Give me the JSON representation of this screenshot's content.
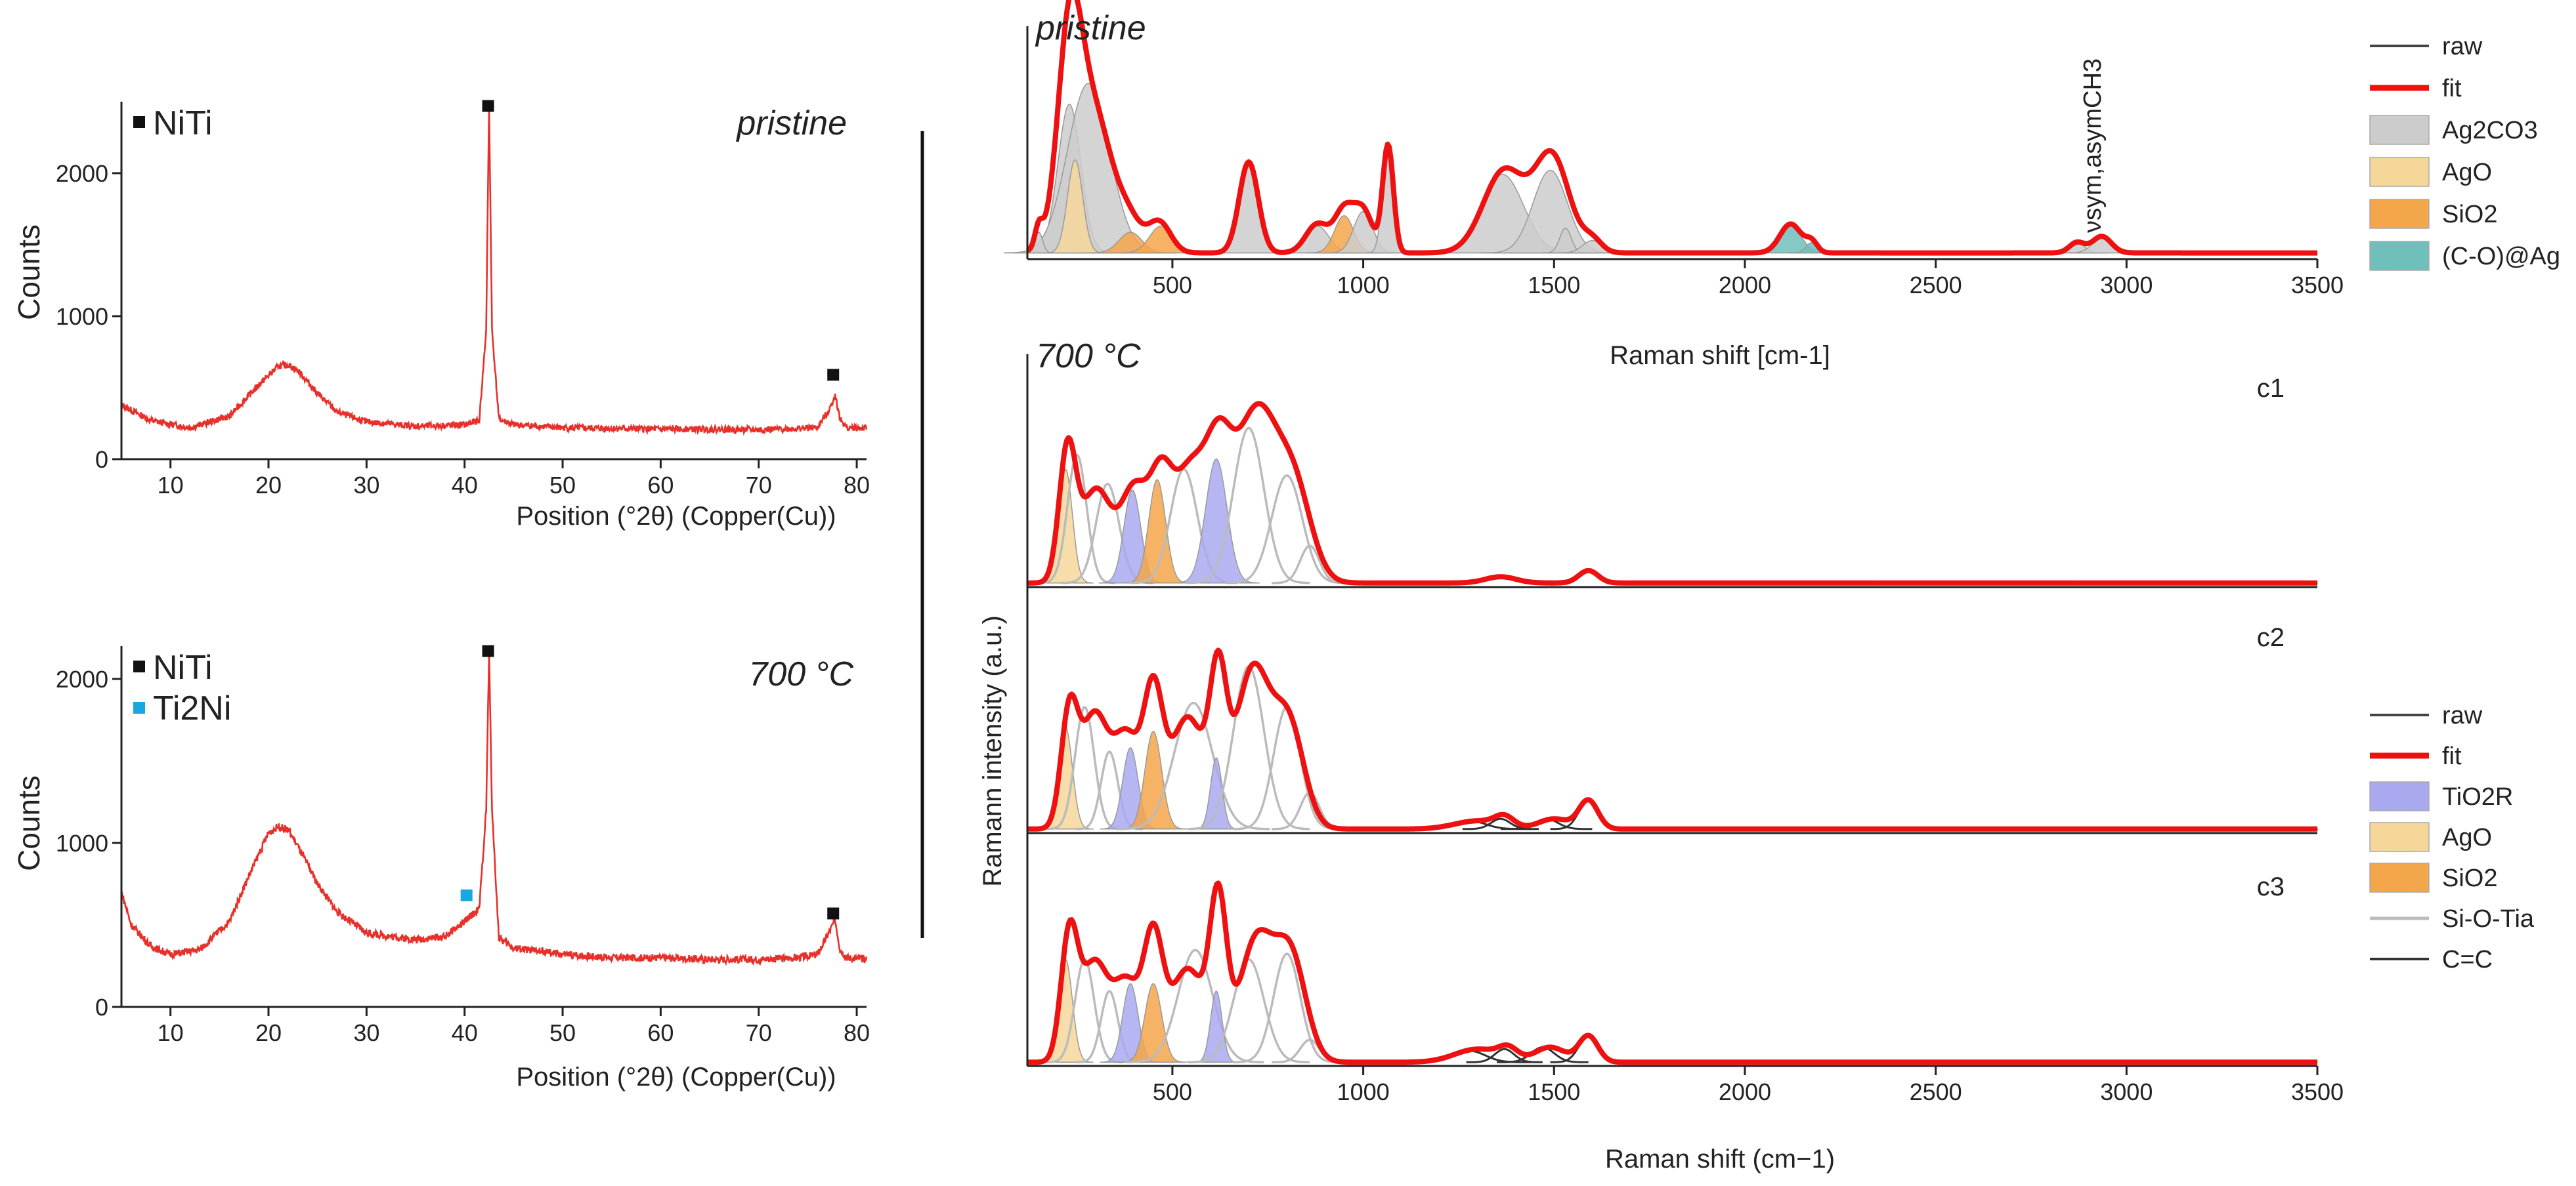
{
  "colors": {
    "raw": "#444444",
    "fit": "#ee1111",
    "ag2co3": "#cccccc",
    "ago": "#f5d79a",
    "sio2": "#f4a64a",
    "co_ag": "#6fc0bb",
    "tio2r": "#a9a9f0",
    "si_o_ti": "#bbbbbb",
    "cc": "#333333",
    "xrd_line": "#e8302a",
    "niti_marker": "#111111",
    "ti2ni_marker": "#1aa7e0"
  },
  "chart_data": [
    {
      "id": "xrd-pristine",
      "type": "line",
      "panel_label": "pristine",
      "xlabel": "Position (°2θ) (Copper(Cu))",
      "ylabel": "Counts",
      "xlim": [
        5,
        81
      ],
      "ylim": [
        0,
        2500
      ],
      "xticks": [
        10,
        20,
        30,
        40,
        50,
        60,
        70,
        80
      ],
      "xticklabels": [
        "10",
        "20",
        "30",
        "40",
        "50",
        "60",
        "70",
        "80"
      ],
      "yticks": [
        0,
        1000,
        2000
      ],
      "yticklabels": [
        "0",
        "1000",
        "2000"
      ],
      "series": [
        {
          "x": [
            5,
            8,
            12,
            16,
            19,
            21,
            22,
            23,
            25,
            27,
            30,
            35,
            40,
            41.5,
            42.2,
            42.5,
            42.8,
            43.5,
            45,
            50,
            55,
            60,
            65,
            70,
            74,
            76,
            77.3,
            77.8,
            78.3,
            79,
            81
          ],
          "y": [
            380,
            270,
            220,
            300,
            520,
            650,
            660,
            620,
            460,
            330,
            260,
            230,
            240,
            270,
            900,
            2480,
            900,
            280,
            240,
            220,
            215,
            210,
            210,
            205,
            215,
            220,
            360,
            450,
            280,
            220,
            215
          ]
        }
      ],
      "markers": [
        {
          "phase": "NiTi",
          "x": 42.4,
          "y": 2470
        },
        {
          "phase": "NiTi",
          "x": 77.6,
          "y": 590
        }
      ],
      "legend": [
        {
          "label": "NiTi"
        }
      ]
    },
    {
      "id": "xrd-700",
      "type": "line",
      "panel_label": "700 °C",
      "xlabel": "Position (°2θ) (Copper(Cu))",
      "ylabel": "Counts",
      "xlim": [
        5,
        81
      ],
      "ylim": [
        0,
        2200
      ],
      "xticks": [
        10,
        20,
        30,
        40,
        50,
        60,
        70,
        80
      ],
      "xticklabels": [
        "10",
        "20",
        "30",
        "40",
        "50",
        "60",
        "70",
        "80"
      ],
      "yticks": [
        0,
        1000,
        2000
      ],
      "yticklabels": [
        "0",
        "1000",
        "2000"
      ],
      "series": [
        {
          "x": [
            5,
            6,
            8,
            10,
            13,
            16,
            18,
            20,
            21,
            22,
            23,
            25,
            27,
            30,
            35,
            38,
            40,
            41.5,
            42.2,
            42.5,
            42.8,
            43.5,
            45,
            50,
            55,
            60,
            65,
            70,
            74,
            76,
            77.3,
            77.8,
            78.3,
            79,
            81
          ],
          "y": [
            700,
            500,
            370,
            320,
            350,
            520,
            800,
            1060,
            1100,
            1080,
            980,
            750,
            580,
            450,
            410,
            430,
            520,
            600,
            1200,
            2160,
            1200,
            420,
            360,
            320,
            300,
            300,
            290,
            290,
            300,
            320,
            470,
            530,
            350,
            300,
            290
          ]
        }
      ],
      "markers": [
        {
          "phase": "NiTi",
          "x": 42.4,
          "y": 2170
        },
        {
          "phase": "Ti2Ni",
          "x": 40.2,
          "y": 680
        },
        {
          "phase": "NiTi",
          "x": 77.6,
          "y": 570
        }
      ],
      "legend": [
        {
          "label": "NiTi"
        },
        {
          "label": "Ti2Ni"
        }
      ]
    },
    {
      "id": "raman-pristine",
      "type": "area",
      "panel_label": "pristine",
      "xlabel": "Raman shift [cm-1]",
      "xlim": [
        120,
        3500
      ],
      "ylim": [
        0,
        1.0
      ],
      "xticks": [
        500,
        1000,
        1500,
        2000,
        2500,
        3000,
        3500
      ],
      "xticklabels": [
        "500",
        "1000",
        "1500",
        "2000",
        "2500",
        "3000",
        "3500"
      ],
      "annotation": "νsym,asymCH3",
      "baseline": 0.03,
      "components": [
        {
          "type": "ag2co3",
          "c": 230,
          "w": 30,
          "h": 0.72
        },
        {
          "type": "ag2co3",
          "c": 280,
          "w": 55,
          "h": 0.82
        },
        {
          "type": "ago",
          "c": 245,
          "w": 20,
          "h": 0.45
        },
        {
          "type": "ag2co3",
          "c": 150,
          "w": 10,
          "h": 0.1
        },
        {
          "type": "sio2",
          "c": 390,
          "w": 30,
          "h": 0.1
        },
        {
          "type": "sio2",
          "c": 470,
          "w": 30,
          "h": 0.13
        },
        {
          "type": "ag2co3",
          "c": 700,
          "w": 25,
          "h": 0.43
        },
        {
          "type": "ag2co3",
          "c": 880,
          "w": 30,
          "h": 0.13
        },
        {
          "type": "sio2",
          "c": 950,
          "w": 25,
          "h": 0.18
        },
        {
          "type": "ag2co3",
          "c": 1000,
          "w": 25,
          "h": 0.2
        },
        {
          "type": "ag2co3",
          "c": 1065,
          "w": 14,
          "h": 0.52
        },
        {
          "type": "ag2co3",
          "c": 1365,
          "w": 55,
          "h": 0.38
        },
        {
          "type": "ag2co3",
          "c": 1490,
          "w": 45,
          "h": 0.4
        },
        {
          "type": "ag2co3",
          "c": 1530,
          "w": 15,
          "h": 0.12
        },
        {
          "type": "ag2co3",
          "c": 1600,
          "w": 25,
          "h": 0.06
        },
        {
          "type": "co_ag",
          "c": 2120,
          "w": 28,
          "h": 0.13
        },
        {
          "type": "co_ag",
          "c": 2175,
          "w": 15,
          "h": 0.05
        },
        {
          "type": "ag2co3",
          "c": 2870,
          "w": 20,
          "h": 0.05
        },
        {
          "type": "ag2co3",
          "c": 2935,
          "w": 25,
          "h": 0.07
        }
      ],
      "fit_peaks": [
        {
          "c": 150,
          "w": 10,
          "h": 0.1
        },
        {
          "c": 230,
          "w": 30,
          "h": 0.8
        },
        {
          "c": 285,
          "w": 55,
          "h": 0.72
        },
        {
          "c": 390,
          "w": 30,
          "h": 0.1
        },
        {
          "c": 465,
          "w": 30,
          "h": 0.15
        },
        {
          "c": 700,
          "w": 25,
          "h": 0.44
        },
        {
          "c": 880,
          "w": 30,
          "h": 0.14
        },
        {
          "c": 950,
          "w": 25,
          "h": 0.2
        },
        {
          "c": 1000,
          "w": 25,
          "h": 0.2
        },
        {
          "c": 1065,
          "w": 14,
          "h": 0.52
        },
        {
          "c": 1370,
          "w": 55,
          "h": 0.4
        },
        {
          "c": 1495,
          "w": 45,
          "h": 0.46
        },
        {
          "c": 1600,
          "w": 25,
          "h": 0.06
        },
        {
          "c": 2120,
          "w": 28,
          "h": 0.14
        },
        {
          "c": 2175,
          "w": 15,
          "h": 0.05
        },
        {
          "c": 2870,
          "w": 20,
          "h": 0.05
        },
        {
          "c": 2935,
          "w": 25,
          "h": 0.08
        }
      ],
      "legend": [
        {
          "key": "raw",
          "label": "raw",
          "kind": "line"
        },
        {
          "key": "fit",
          "label": "fit",
          "kind": "line"
        },
        {
          "key": "ag2co3",
          "label": "Ag2CO3",
          "kind": "box"
        },
        {
          "key": "ago",
          "label": "AgO",
          "kind": "box"
        },
        {
          "key": "sio2",
          "label": "SiO2",
          "kind": "box"
        },
        {
          "key": "co_ag",
          "label": "(C-O)@Ag",
          "kind": "box"
        }
      ]
    },
    {
      "id": "raman-700",
      "type": "area",
      "panel_label": "700 °C",
      "xlabel": "Raman shift (cm−1)",
      "ylabel": "Ramann intensity (a.u.)",
      "xlim": [
        120,
        3500
      ],
      "xticks": [
        500,
        1000,
        1500,
        2000,
        2500,
        3000,
        3500
      ],
      "xticklabels": [
        "500",
        "1000",
        "1500",
        "2000",
        "2500",
        "3000",
        "3500"
      ],
      "subpanels": [
        {
          "label": "c1",
          "baseline": 0.02,
          "components": [
            {
              "type": "ago",
              "c": 220,
              "w": 18,
              "h": 0.55
            },
            {
              "type": "si_o_ti",
              "c": 250,
              "w": 25,
              "h": 0.62
            },
            {
              "type": "si_o_ti",
              "c": 330,
              "w": 30,
              "h": 0.48
            },
            {
              "type": "tio2r",
              "c": 395,
              "w": 22,
              "h": 0.45
            },
            {
              "type": "sio2",
              "c": 460,
              "w": 22,
              "h": 0.5
            },
            {
              "type": "si_o_ti",
              "c": 530,
              "w": 35,
              "h": 0.55
            },
            {
              "type": "tio2r",
              "c": 615,
              "w": 28,
              "h": 0.6
            },
            {
              "type": "si_o_ti",
              "c": 700,
              "w": 40,
              "h": 0.75
            },
            {
              "type": "si_o_ti",
              "c": 800,
              "w": 40,
              "h": 0.52
            },
            {
              "type": "si_o_ti",
              "c": 860,
              "w": 25,
              "h": 0.18
            },
            {
              "type": "cc",
              "c": 1360,
              "w": 40,
              "h": 0.03
            },
            {
              "type": "cc",
              "c": 1590,
              "w": 25,
              "h": 0.06
            }
          ],
          "fit_peaks": [
            {
              "c": 225,
              "w": 22,
              "h": 0.62
            },
            {
              "c": 300,
              "w": 40,
              "h": 0.45
            },
            {
              "c": 400,
              "w": 35,
              "h": 0.44
            },
            {
              "c": 470,
              "w": 30,
              "h": 0.46
            },
            {
              "c": 545,
              "w": 40,
              "h": 0.52
            },
            {
              "c": 620,
              "w": 35,
              "h": 0.55
            },
            {
              "c": 720,
              "w": 55,
              "h": 0.82
            },
            {
              "c": 820,
              "w": 45,
              "h": 0.42
            },
            {
              "c": 1360,
              "w": 40,
              "h": 0.03
            },
            {
              "c": 1590,
              "w": 25,
              "h": 0.06
            }
          ]
        },
        {
          "label": "c2",
          "baseline": 0.02,
          "components": [
            {
              "type": "ago",
              "c": 220,
              "w": 18,
              "h": 0.5
            },
            {
              "type": "si_o_ti",
              "c": 270,
              "w": 25,
              "h": 0.6
            },
            {
              "type": "si_o_ti",
              "c": 335,
              "w": 22,
              "h": 0.38
            },
            {
              "type": "tio2r",
              "c": 390,
              "w": 20,
              "h": 0.4
            },
            {
              "type": "sio2",
              "c": 450,
              "w": 22,
              "h": 0.48
            },
            {
              "type": "si_o_ti",
              "c": 555,
              "w": 50,
              "h": 0.62
            },
            {
              "type": "tio2r",
              "c": 615,
              "w": 15,
              "h": 0.35
            },
            {
              "type": "si_o_ti",
              "c": 700,
              "w": 40,
              "h": 0.8
            },
            {
              "type": "si_o_ti",
              "c": 800,
              "w": 35,
              "h": 0.6
            },
            {
              "type": "si_o_ti",
              "c": 860,
              "w": 25,
              "h": 0.18
            },
            {
              "type": "cc",
              "c": 1280,
              "w": 40,
              "h": 0.04
            },
            {
              "type": "cc",
              "c": 1360,
              "w": 25,
              "h": 0.05
            },
            {
              "type": "cc",
              "c": 1480,
              "w": 30,
              "h": 0.05
            },
            {
              "type": "cc",
              "c": 1590,
              "w": 25,
              "h": 0.14
            }
          ],
          "fit_peaks": [
            {
              "c": 230,
              "w": 22,
              "h": 0.55
            },
            {
              "c": 295,
              "w": 35,
              "h": 0.55
            },
            {
              "c": 380,
              "w": 35,
              "h": 0.45
            },
            {
              "c": 450,
              "w": 25,
              "h": 0.62
            },
            {
              "c": 540,
              "w": 45,
              "h": 0.55
            },
            {
              "c": 620,
              "w": 22,
              "h": 0.66
            },
            {
              "c": 710,
              "w": 45,
              "h": 0.78
            },
            {
              "c": 805,
              "w": 40,
              "h": 0.5
            },
            {
              "c": 1300,
              "w": 60,
              "h": 0.04
            },
            {
              "c": 1370,
              "w": 25,
              "h": 0.05
            },
            {
              "c": 1500,
              "w": 40,
              "h": 0.05
            },
            {
              "c": 1590,
              "w": 25,
              "h": 0.14
            }
          ]
        },
        {
          "label": "c3",
          "baseline": 0.02,
          "components": [
            {
              "type": "ago",
              "c": 220,
              "w": 18,
              "h": 0.55
            },
            {
              "type": "si_o_ti",
              "c": 270,
              "w": 25,
              "h": 0.55
            },
            {
              "type": "si_o_ti",
              "c": 335,
              "w": 22,
              "h": 0.38
            },
            {
              "type": "tio2r",
              "c": 390,
              "w": 20,
              "h": 0.42
            },
            {
              "type": "sio2",
              "c": 450,
              "w": 22,
              "h": 0.42
            },
            {
              "type": "si_o_ti",
              "c": 560,
              "w": 45,
              "h": 0.6
            },
            {
              "type": "tio2r",
              "c": 615,
              "w": 15,
              "h": 0.38
            },
            {
              "type": "si_o_ti",
              "c": 700,
              "w": 40,
              "h": 0.55
            },
            {
              "type": "si_o_ti",
              "c": 800,
              "w": 35,
              "h": 0.58
            },
            {
              "type": "si_o_ti",
              "c": 860,
              "w": 25,
              "h": 0.12
            },
            {
              "type": "cc",
              "c": 1280,
              "w": 40,
              "h": 0.06
            },
            {
              "type": "cc",
              "c": 1370,
              "w": 25,
              "h": 0.07
            },
            {
              "type": "cc",
              "c": 1470,
              "w": 30,
              "h": 0.08
            },
            {
              "type": "cc",
              "c": 1590,
              "w": 25,
              "h": 0.14
            }
          ],
          "fit_peaks": [
            {
              "c": 230,
              "w": 22,
              "h": 0.66
            },
            {
              "c": 295,
              "w": 35,
              "h": 0.52
            },
            {
              "c": 380,
              "w": 35,
              "h": 0.42
            },
            {
              "c": 450,
              "w": 25,
              "h": 0.62
            },
            {
              "c": 540,
              "w": 45,
              "h": 0.5
            },
            {
              "c": 620,
              "w": 22,
              "h": 0.8
            },
            {
              "c": 720,
              "w": 45,
              "h": 0.65
            },
            {
              "c": 810,
              "w": 40,
              "h": 0.55
            },
            {
              "c": 1300,
              "w": 60,
              "h": 0.07
            },
            {
              "c": 1380,
              "w": 25,
              "h": 0.06
            },
            {
              "c": 1490,
              "w": 40,
              "h": 0.08
            },
            {
              "c": 1590,
              "w": 25,
              "h": 0.14
            }
          ]
        }
      ],
      "legend": [
        {
          "key": "raw",
          "label": "raw",
          "kind": "line"
        },
        {
          "key": "fit",
          "label": "fit",
          "kind": "line"
        },
        {
          "key": "tio2r",
          "label": "TiO2R",
          "kind": "box"
        },
        {
          "key": "ago",
          "label": "AgO",
          "kind": "box"
        },
        {
          "key": "sio2",
          "label": "SiO2",
          "kind": "box"
        },
        {
          "key": "si_o_ti",
          "label": "Si-O-Tia",
          "kind": "line"
        },
        {
          "key": "cc",
          "label": "C=C",
          "kind": "line"
        }
      ]
    }
  ]
}
